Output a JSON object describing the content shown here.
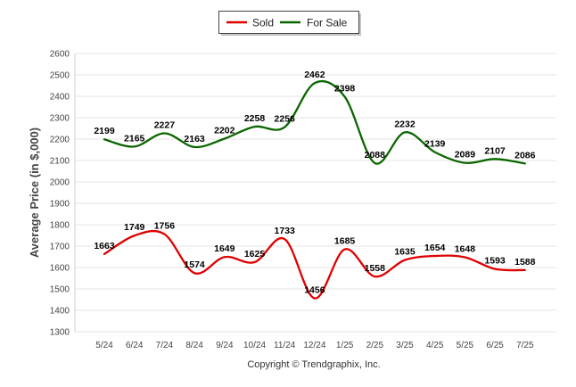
{
  "chart_data": {
    "type": "line",
    "categories": [
      "5/24",
      "6/24",
      "7/24",
      "8/24",
      "9/24",
      "10/24",
      "11/24",
      "12/24",
      "1/25",
      "2/25",
      "3/25",
      "4/25",
      "5/25",
      "6/25",
      "7/25"
    ],
    "series": [
      {
        "name": "Sold",
        "color": "#e00000",
        "values": [
          1663,
          1749,
          1756,
          1574,
          1649,
          1625,
          1733,
          1456,
          1685,
          1558,
          1635,
          1654,
          1648,
          1593,
          1588
        ]
      },
      {
        "name": "For Sale",
        "color": "#0a6600",
        "values": [
          2199,
          2165,
          2227,
          2163,
          2202,
          2258,
          2256,
          2462,
          2398,
          2088,
          2232,
          2139,
          2089,
          2107,
          2086
        ]
      }
    ],
    "ylabel": "Average Price (in $,000)",
    "ylim": [
      1300,
      2600
    ],
    "yticks": [
      1300,
      1400,
      1500,
      1600,
      1700,
      1800,
      1900,
      2000,
      2100,
      2200,
      2300,
      2400,
      2500,
      2600
    ],
    "grid": true,
    "legend": "top-center",
    "footer": "Copyright © Trendgraphix, Inc."
  }
}
